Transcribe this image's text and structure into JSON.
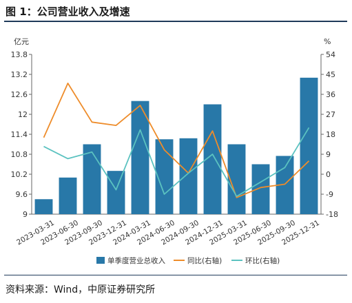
{
  "title": "图 1：公司营业收入及增速",
  "source": "资料来源：Wind，中原证券研究所",
  "chart_data": {
    "type": "bar",
    "categories": [
      "2023-03-31",
      "2023-06-30",
      "2023-09-30",
      "2023-12-31",
      "2024-03-31",
      "2024-06-30",
      "2024-09-30",
      "2024-12-31",
      "2025-03-31",
      "2025-06-30",
      "2025-09-30",
      "2025-12-31"
    ],
    "left_unit": "亿元",
    "right_unit": "%",
    "ylim_left": [
      9,
      13.8
    ],
    "yticks_left": [
      "13.8",
      "13.2",
      "12.6",
      "12",
      "11.4",
      "10.8",
      "10.2",
      "9.6",
      "9"
    ],
    "ylim_right": [
      -18,
      54
    ],
    "yticks_right": [
      "54",
      "45",
      "36",
      "27",
      "18",
      "9",
      "0",
      "-9",
      "-18"
    ],
    "series": [
      {
        "name": "单季度营业总收入",
        "kind": "bar",
        "axis": "left",
        "color": "#2878a8",
        "values": [
          9.45,
          10.1,
          11.1,
          10.3,
          12.4,
          11.25,
          11.28,
          12.3,
          11.1,
          10.5,
          10.75,
          13.1
        ]
      },
      {
        "name": "同比(右轴)",
        "kind": "line",
        "axis": "right",
        "color": "#ee8c2a",
        "values": [
          16.5,
          41.0,
          23.5,
          22.0,
          31.0,
          11.0,
          0.5,
          19.5,
          -10.5,
          -6.0,
          -4.5,
          6.0
        ]
      },
      {
        "name": "环比(右轴)",
        "kind": "line",
        "axis": "right",
        "color": "#5bc2c0",
        "values": [
          12.5,
          7.0,
          10.0,
          -7.0,
          20.0,
          -9.0,
          0.5,
          9.0,
          -10.0,
          -3.5,
          3.0,
          21.0
        ]
      }
    ],
    "grid": false,
    "legend": "bottom"
  }
}
